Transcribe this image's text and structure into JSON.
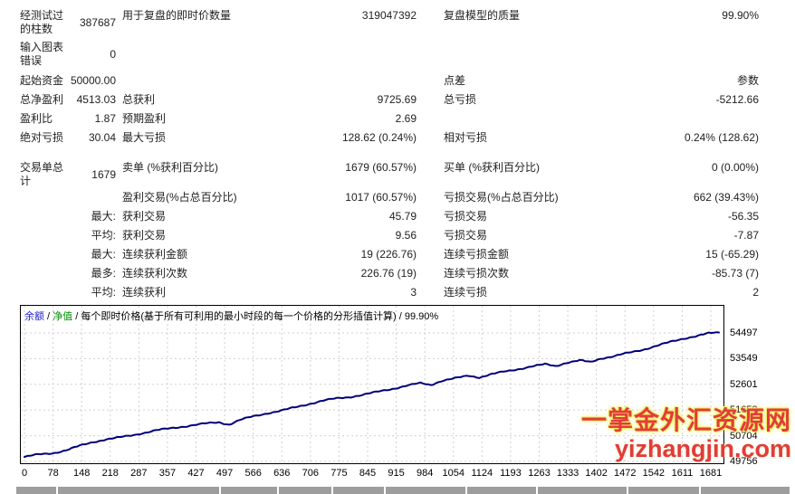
{
  "report": {
    "rows": [
      {
        "c1": "经测试过的柱数",
        "v1": "387687",
        "c3": "用于复盘的即时价数量",
        "v3": "319047392",
        "c5": "复盘模型的质量",
        "v5": "99.90%"
      },
      {
        "c1": "输入图表错误",
        "v1": "0"
      },
      {
        "c1": "起始资金",
        "v1": "50000.00",
        "c5": "点差",
        "v5": "参数"
      },
      {
        "c1": "总净盈利",
        "v1": "4513.03",
        "c3": "总获利",
        "v3": "9725.69",
        "c5": "总亏损",
        "v5": "-5212.66"
      },
      {
        "c1": "盈利比",
        "v1": "1.87",
        "c3": "预期盈利",
        "v3": "2.69"
      },
      {
        "c1": "绝对亏损",
        "v1": "30.04",
        "c3": "最大亏损",
        "v3": "128.62 (0.24%)",
        "c5": "相对亏损",
        "v5": "0.24% (128.62)"
      },
      {
        "c1": "交易单总计",
        "v1": "1679",
        "c3": "卖单 (%获利百分比)",
        "v3": "1679 (60.57%)",
        "c5": "买单 (%获利百分比)",
        "v5": "0 (0.00%)"
      },
      {
        "c3": "盈利交易(%占总百分比)",
        "v3": "1017 (60.57%)",
        "c5": "亏损交易(%占总百分比)",
        "v5": "662 (39.43%)"
      },
      {
        "v1": "最大:",
        "c3": "获利交易",
        "v3": "45.79",
        "c5": "亏损交易",
        "v5": "-56.35"
      },
      {
        "v1": "平均:",
        "c3": "获利交易",
        "v3": "9.56",
        "c5": "亏损交易",
        "v5": "-7.87"
      },
      {
        "v1": "最大:",
        "c3": "连续获利金额",
        "v3": "19 (226.76)",
        "c5": "连续亏损金额",
        "v5": "15 (-65.29)"
      },
      {
        "v1": "最多:",
        "c3": "连续获利次数",
        "v3": "226.76 (19)",
        "c5": "连续亏损次数",
        "v5": "-85.73 (7)"
      },
      {
        "v1": "平均:",
        "c3": "连续获利",
        "v3": "3",
        "c5": "连续亏损",
        "v5": "2"
      }
    ]
  },
  "chart_data": {
    "type": "line",
    "legend": {
      "balance_label": "余额",
      "equity_label": "净值",
      "separator": " / ",
      "description": "每个即时价格(基于所有可利用的最小时段的每一个价格的分形插值计算)",
      "quality": "99.90%"
    },
    "x_ticks": [
      0,
      78,
      148,
      218,
      287,
      357,
      427,
      497,
      566,
      636,
      706,
      775,
      845,
      915,
      984,
      1054,
      1124,
      1193,
      1263,
      1333,
      1402,
      1472,
      1542,
      1611,
      1681
    ],
    "y_ticks": [
      54497,
      53549,
      52601,
      51653,
      50704,
      49756
    ],
    "ylim": [
      49650,
      55530
    ],
    "grid": true,
    "legend_position": "top-left-inside",
    "series": [
      {
        "name": "余额",
        "color": "#00007a",
        "points": [
          [
            0,
            49920
          ],
          [
            34,
            50010
          ],
          [
            67,
            50060
          ],
          [
            101,
            50170
          ],
          [
            134,
            50330
          ],
          [
            168,
            50480
          ],
          [
            193,
            50560
          ],
          [
            218,
            50610
          ],
          [
            252,
            50700
          ],
          [
            285,
            50800
          ],
          [
            319,
            50900
          ],
          [
            353,
            50980
          ],
          [
            386,
            51050
          ],
          [
            437,
            51150
          ],
          [
            470,
            51200
          ],
          [
            495,
            51120
          ],
          [
            520,
            51280
          ],
          [
            554,
            51420
          ],
          [
            588,
            51540
          ],
          [
            621,
            51630
          ],
          [
            655,
            51750
          ],
          [
            688,
            51880
          ],
          [
            722,
            52000
          ],
          [
            756,
            52080
          ],
          [
            789,
            52140
          ],
          [
            823,
            52230
          ],
          [
            856,
            52330
          ],
          [
            890,
            52440
          ],
          [
            923,
            52550
          ],
          [
            957,
            52640
          ],
          [
            982,
            52580
          ],
          [
            1007,
            52730
          ],
          [
            1041,
            52820
          ],
          [
            1074,
            52920
          ],
          [
            1100,
            52860
          ],
          [
            1125,
            52960
          ],
          [
            1158,
            53060
          ],
          [
            1192,
            53160
          ],
          [
            1226,
            53260
          ],
          [
            1259,
            53340
          ],
          [
            1284,
            53280
          ],
          [
            1310,
            53400
          ],
          [
            1343,
            53480
          ],
          [
            1368,
            53420
          ],
          [
            1393,
            53560
          ],
          [
            1427,
            53640
          ],
          [
            1460,
            53760
          ],
          [
            1494,
            53880
          ],
          [
            1528,
            54020
          ],
          [
            1561,
            54160
          ],
          [
            1595,
            54300
          ],
          [
            1629,
            54400
          ],
          [
            1654,
            54480
          ],
          [
            1679,
            54513
          ]
        ]
      }
    ]
  },
  "watermark": {
    "line1": "一掌金外汇资源网",
    "line2": "yizhangjin.com"
  },
  "colors": {
    "balance_line": "#00007a",
    "legend_balance": "#2222cc",
    "legend_equity": "#009000",
    "grid": "#cfcfcf",
    "border": "#000000",
    "watermark_red": "#e23b3b",
    "watermark_glow": "#eef05a",
    "header_strip": "#9d9d9d"
  }
}
